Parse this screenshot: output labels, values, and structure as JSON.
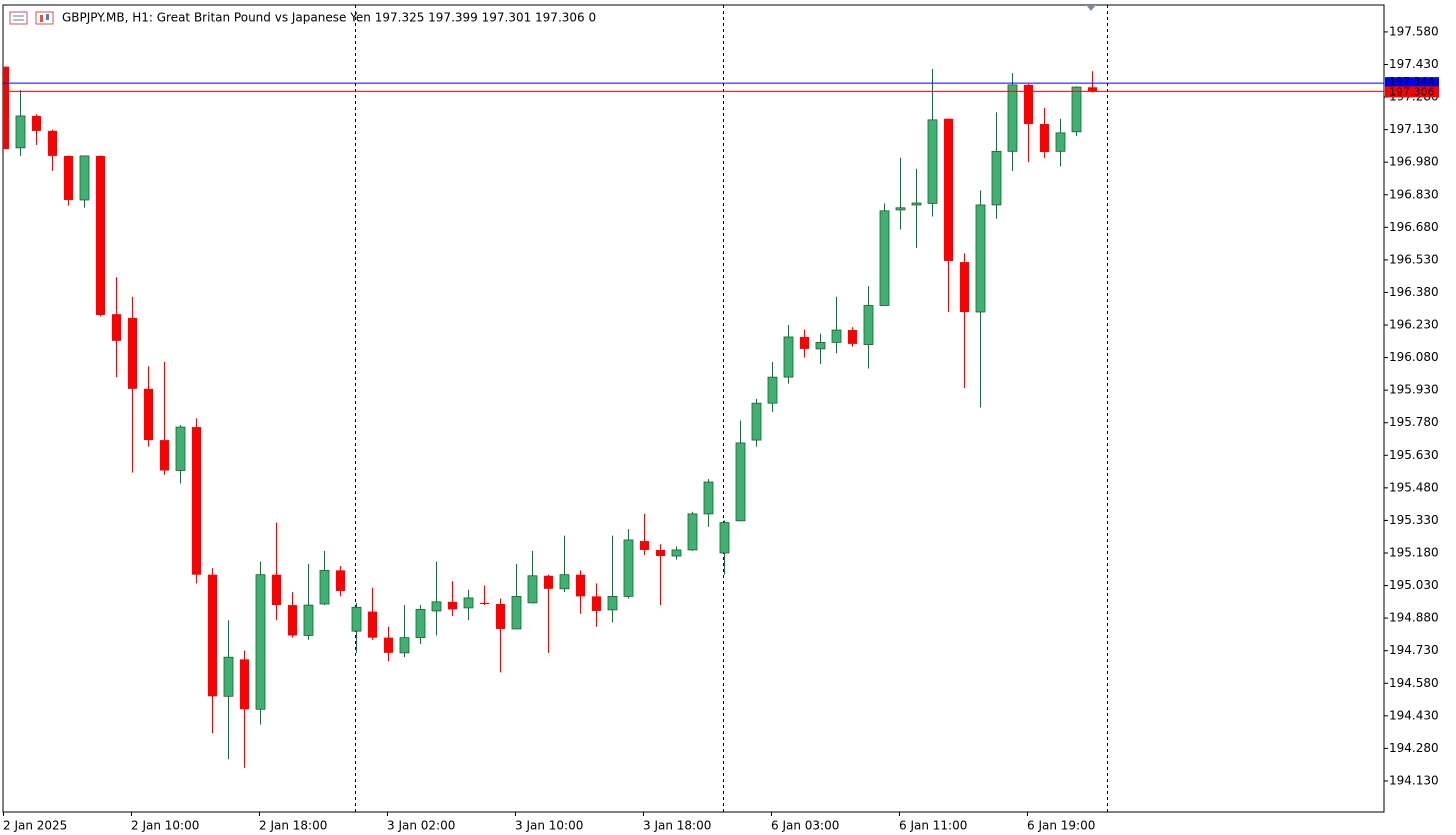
{
  "chart_data": {
    "type": "candlestick",
    "title": "GBPJPY.MB, H1:  Great Britan Pound vs Japanese Yen  197.325 197.399 197.301 197.306  0",
    "categories": [
      "2 Jan 2025",
      null,
      null,
      null,
      null,
      null,
      null,
      null,
      "2 Jan 10:00",
      null,
      null,
      null,
      null,
      null,
      null,
      null,
      "2 Jan 18:00",
      null,
      null,
      null,
      null,
      null,
      null,
      null,
      "3 Jan 02:00",
      null,
      null,
      null,
      null,
      null,
      null,
      null,
      "3 Jan 10:00",
      null,
      null,
      null,
      null,
      null,
      null,
      null,
      "3 Jan 18:00",
      null,
      null,
      null,
      null,
      null,
      null,
      null,
      "6 Jan 03:00",
      null,
      null,
      null,
      null,
      null,
      null,
      null,
      "6 Jan 11:00",
      null,
      null,
      null,
      null,
      null,
      null,
      null,
      "6 Jan 19:00",
      null,
      null,
      null,
      null
    ],
    "open": [
      197.42,
      197.046,
      197.193,
      197.124,
      197.009,
      196.806,
      197.009,
      196.28,
      196.263,
      195.936,
      195.7,
      195.56,
      195.76,
      195.08,
      194.52,
      194.69,
      194.46,
      195.08,
      194.94,
      194.8,
      194.945,
      195.1,
      194.82,
      194.91,
      194.79,
      194.72,
      194.79,
      194.913,
      194.955,
      194.927,
      194.95,
      194.945,
      194.83,
      194.95,
      195.075,
      195.015,
      195.08,
      194.98,
      194.918,
      194.98,
      195.235,
      195.194,
      195.166,
      195.194,
      195.36,
      195.18,
      195.328,
      195.7,
      195.87,
      195.99,
      196.175,
      196.12,
      196.15,
      196.207,
      196.14,
      196.32,
      196.76,
      196.783,
      196.79,
      197.18,
      196.52,
      196.29,
      196.783,
      197.03,
      197.336,
      197.156,
      197.03,
      197.12,
      197.325
    ],
    "high": [
      197.42,
      197.313,
      197.2,
      197.13,
      197.01,
      197.01,
      197.01,
      196.45,
      196.36,
      196.04,
      196.06,
      195.77,
      195.8,
      195.11,
      194.87,
      194.73,
      195.14,
      195.32,
      195.0,
      195.13,
      195.19,
      195.12,
      194.95,
      195.02,
      194.84,
      194.94,
      194.94,
      195.14,
      195.05,
      195.01,
      195.03,
      194.97,
      195.13,
      195.19,
      195.08,
      195.26,
      195.1,
      195.04,
      195.26,
      195.29,
      195.36,
      195.22,
      195.21,
      195.37,
      195.52,
      195.33,
      195.79,
      195.89,
      196.06,
      196.23,
      196.21,
      196.19,
      196.36,
      196.22,
      196.41,
      196.79,
      197.0,
      196.95,
      197.41,
      197.18,
      196.56,
      196.85,
      197.21,
      197.39,
      197.34,
      197.23,
      197.18,
      197.33,
      197.399
    ],
    "low": [
      197.04,
      197.009,
      197.06,
      196.94,
      196.78,
      196.77,
      196.27,
      195.99,
      195.55,
      195.67,
      195.54,
      195.5,
      195.04,
      194.35,
      194.23,
      194.19,
      194.39,
      194.87,
      194.79,
      194.78,
      194.94,
      194.98,
      194.72,
      194.78,
      194.68,
      194.7,
      194.76,
      194.8,
      194.89,
      194.87,
      194.94,
      194.63,
      194.83,
      194.95,
      194.72,
      195.0,
      194.9,
      194.84,
      194.86,
      194.97,
      195.17,
      194.94,
      195.15,
      195.19,
      195.3,
      195.08,
      195.328,
      195.67,
      195.83,
      195.96,
      196.08,
      196.05,
      196.1,
      196.13,
      196.03,
      196.32,
      196.67,
      196.585,
      196.73,
      196.29,
      195.94,
      195.85,
      196.72,
      196.94,
      196.98,
      197.0,
      196.96,
      197.1,
      197.301
    ],
    "close": [
      197.04,
      197.193,
      197.124,
      197.009,
      196.806,
      197.009,
      196.276,
      196.157,
      195.936,
      195.7,
      195.56,
      195.76,
      195.08,
      194.52,
      194.7,
      194.46,
      195.08,
      194.94,
      194.8,
      194.94,
      195.1,
      195.005,
      194.93,
      194.79,
      194.72,
      194.79,
      194.92,
      194.955,
      194.92,
      194.973,
      194.945,
      194.83,
      194.98,
      195.075,
      195.015,
      195.08,
      194.98,
      194.913,
      194.98,
      195.24,
      195.194,
      195.166,
      195.194,
      195.36,
      195.507,
      195.32,
      195.687,
      195.87,
      195.99,
      196.175,
      196.12,
      196.15,
      196.207,
      196.143,
      196.32,
      196.756,
      196.77,
      196.792,
      197.175,
      196.525,
      196.29,
      196.783,
      197.03,
      197.336,
      197.156,
      197.027,
      197.115,
      197.326,
      197.306
    ],
    "up_color": "#3cb371",
    "down_color": "#ff0000",
    "ask": 197.344,
    "ask_color": "#0000ff",
    "bid": 197.306,
    "bid_color": "#ff0000",
    "ylim": [
      193.987,
      197.704
    ],
    "yticks": [
      {
        "value": 197.58,
        "label": "197.580"
      },
      {
        "value": 197.43,
        "label": "197.430"
      },
      {
        "value": 197.28,
        "label": "197.280"
      },
      {
        "value": 197.13,
        "label": "197.130"
      },
      {
        "value": 196.98,
        "label": "196.980"
      },
      {
        "value": 196.83,
        "label": "196.830"
      },
      {
        "value": 196.68,
        "label": "196.680"
      },
      {
        "value": 196.53,
        "label": "196.530"
      },
      {
        "value": 196.38,
        "label": "196.380"
      },
      {
        "value": 196.23,
        "label": "196.230"
      },
      {
        "value": 196.08,
        "label": "196.080"
      },
      {
        "value": 195.93,
        "label": "195.930"
      },
      {
        "value": 195.78,
        "label": "195.780"
      },
      {
        "value": 195.63,
        "label": "195.630"
      },
      {
        "value": 195.48,
        "label": "195.480"
      },
      {
        "value": 195.33,
        "label": "195.330"
      },
      {
        "value": 195.18,
        "label": "195.180"
      },
      {
        "value": 195.03,
        "label": "195.030"
      },
      {
        "value": 194.88,
        "label": "194.880"
      },
      {
        "value": 194.73,
        "label": "194.730"
      },
      {
        "value": 194.58,
        "label": "194.580"
      },
      {
        "value": 194.43,
        "label": "194.430"
      },
      {
        "value": 194.28,
        "label": "194.280"
      },
      {
        "value": 194.13,
        "label": "194.130"
      }
    ]
  }
}
